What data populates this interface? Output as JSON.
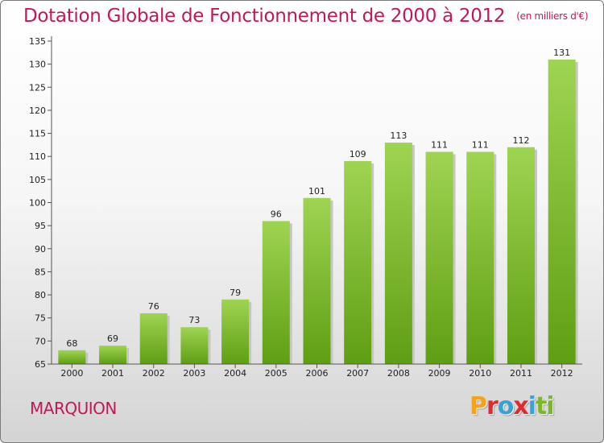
{
  "page": {
    "title": "Dotation Globale de Fonctionnement de 2000 à 2012",
    "unit": "(en milliers d'€)",
    "commune": "MARQUION",
    "logo_letters": [
      "P",
      "r",
      "o",
      "x",
      "i",
      "t",
      "i"
    ],
    "logo_colors": [
      "#f7a21b",
      "#e2292b",
      "#3aa0d8",
      "#e2292b",
      "#3aa0d8",
      "#7ab829",
      "#7ab829"
    ]
  },
  "chart_data": {
    "type": "bar",
    "title": "Dotation Globale de Fonctionnement de 2000 à 2012",
    "subtitle": "(en milliers d'€)",
    "categories": [
      "2000",
      "2001",
      "2002",
      "2003",
      "2004",
      "2005",
      "2006",
      "2007",
      "2008",
      "2009",
      "2010",
      "2011",
      "2012"
    ],
    "values": [
      68,
      69,
      76,
      73,
      79,
      96,
      101,
      109,
      113,
      111,
      111,
      112,
      131
    ],
    "data_labels": [
      "68",
      "69",
      "76",
      "73",
      "79",
      "96",
      "101",
      "109",
      "113",
      "111",
      "111",
      "112",
      "131"
    ],
    "ylim": [
      65,
      135
    ],
    "yticks": [
      65,
      70,
      75,
      80,
      85,
      90,
      95,
      100,
      105,
      110,
      115,
      120,
      125,
      130,
      135
    ],
    "grid": false,
    "colors": {
      "bar_top": "#9fd452",
      "bar_bottom": "#5f9e13",
      "shadow": "#c6c6c6",
      "text": "#222222",
      "accent": "#c2185b"
    }
  }
}
